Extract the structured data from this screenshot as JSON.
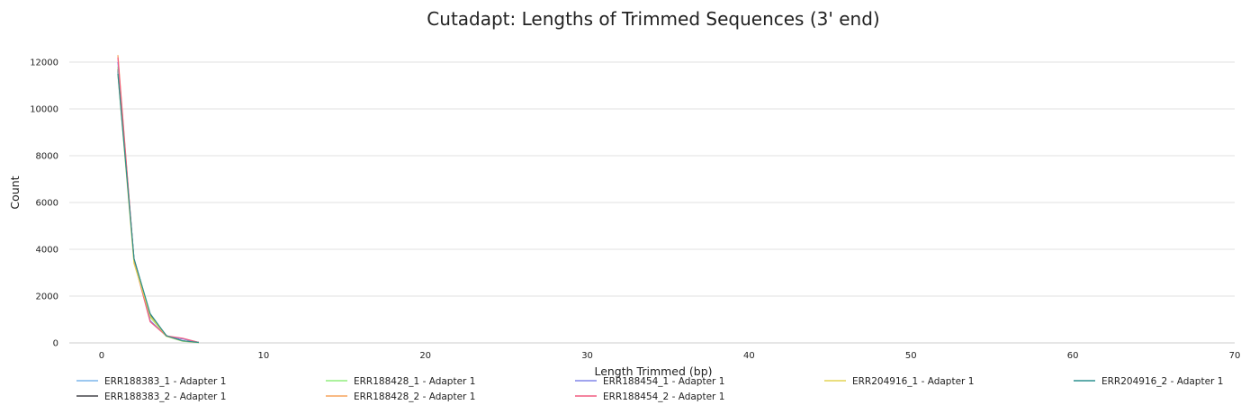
{
  "chart_data": {
    "type": "line",
    "title": "Cutadapt: Lengths of Trimmed Sequences (3' end)",
    "xlabel": "Length Trimmed (bp)",
    "ylabel": "Count",
    "xlim": [
      -2,
      70
    ],
    "ylim": [
      0,
      13000
    ],
    "x_ticks": [
      0,
      10,
      20,
      30,
      40,
      50,
      60,
      70
    ],
    "y_ticks": [
      0,
      2000,
      4000,
      6000,
      8000,
      10000,
      12000
    ],
    "grid": true,
    "legend_position": "bottom",
    "series": [
      {
        "name": "ERR188383_1 - Adapter 1",
        "color": "#7cb5ec",
        "x": [
          1,
          2,
          3,
          4,
          5,
          6
        ],
        "y": [
          11600,
          3550,
          1150,
          300,
          80,
          20
        ]
      },
      {
        "name": "ERR188383_2 - Adapter 1",
        "color": "#434348",
        "x": [
          1,
          2,
          3,
          4,
          5,
          6
        ],
        "y": [
          11700,
          3600,
          1200,
          310,
          90,
          20
        ]
      },
      {
        "name": "ERR188428_1 - Adapter 1",
        "color": "#90ed7d",
        "x": [
          1,
          2,
          3,
          4,
          5,
          6
        ],
        "y": [
          11800,
          3500,
          1100,
          290,
          70,
          15
        ]
      },
      {
        "name": "ERR188428_2 - Adapter 1",
        "color": "#f7a35c",
        "x": [
          1,
          2,
          3,
          4,
          5,
          6
        ],
        "y": [
          12300,
          3500,
          950,
          280,
          180,
          20
        ]
      },
      {
        "name": "ERR188454_1 - Adapter 1",
        "color": "#8085e9",
        "x": [
          1,
          2,
          3,
          4,
          5,
          6
        ],
        "y": [
          12000,
          3550,
          950,
          290,
          170,
          20
        ]
      },
      {
        "name": "ERR188454_2 - Adapter 1",
        "color": "#f15c80",
        "x": [
          1,
          2,
          3,
          4,
          5,
          6
        ],
        "y": [
          12200,
          3500,
          900,
          300,
          200,
          20
        ]
      },
      {
        "name": "ERR204916_1 - Adapter 1",
        "color": "#e4d354",
        "x": [
          1,
          2,
          3,
          4,
          5,
          6
        ],
        "y": [
          11500,
          3400,
          1150,
          280,
          80,
          15
        ]
      },
      {
        "name": "ERR204916_2 - Adapter 1",
        "color": "#2b908f",
        "x": [
          1,
          2,
          3,
          4,
          5,
          6
        ],
        "y": [
          11500,
          3600,
          1250,
          300,
          90,
          20
        ]
      }
    ]
  }
}
